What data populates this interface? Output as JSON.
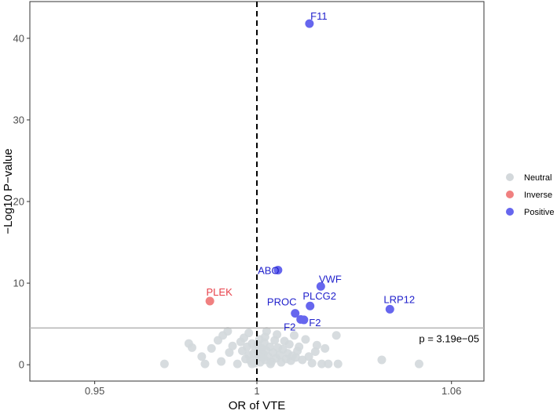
{
  "chart_data": {
    "type": "scatter",
    "title": "",
    "xlabel": "OR of VTE",
    "ylabel": "−Log10 P−value",
    "xlim": [
      0.93,
      1.07
    ],
    "ylim": [
      -2,
      44.5
    ],
    "x_ticks": [
      0.95,
      1,
      1.06
    ],
    "x_tick_labels": [
      "0.95",
      "1",
      "1.06"
    ],
    "y_ticks": [
      0,
      10,
      20,
      30,
      40
    ],
    "y_tick_labels": [
      "0",
      "10",
      "20",
      "30",
      "40"
    ],
    "vline_x": 1,
    "threshold_y": 4.5,
    "threshold_label": "p = 3.19e−05",
    "grid": false,
    "legend_placement": "right",
    "colors": {
      "Neutral": "#D3D8DB",
      "Inverse": "#F08080",
      "Positive": "#6666EE",
      "label_Inverse": "#E8404A",
      "label_Positive": "#2222CC"
    },
    "legend": [
      {
        "name": "Neutral"
      },
      {
        "name": "Inverse"
      },
      {
        "name": "Positive"
      }
    ],
    "labeled_points": [
      {
        "label": "F11",
        "x": 1.0162,
        "y": 41.8,
        "group": "Positive"
      },
      {
        "label": "ABO",
        "x": 1.0065,
        "y": 11.6,
        "group": "Positive"
      },
      {
        "label": "VWF",
        "x": 1.0197,
        "y": 9.6,
        "group": "Positive"
      },
      {
        "label": "PLEK",
        "x": 0.9855,
        "y": 7.8,
        "group": "Inverse"
      },
      {
        "label": "PLCG2",
        "x": 1.0164,
        "y": 7.2,
        "group": "Positive"
      },
      {
        "label": "LRP12",
        "x": 1.041,
        "y": 6.8,
        "group": "Positive"
      },
      {
        "label": "PROC",
        "x": 1.0118,
        "y": 6.3,
        "group": "Positive"
      },
      {
        "label": "F2",
        "x": 1.0145,
        "y": 5.5,
        "group": "Positive"
      },
      {
        "label": "F2",
        "x": 1.0135,
        "y": 5.55,
        "group": "Positive"
      }
    ],
    "neutral_points": [
      [
        0.9715,
        0.1
      ],
      [
        0.979,
        2.6
      ],
      [
        0.98,
        2.1
      ],
      [
        0.983,
        1.0
      ],
      [
        0.984,
        0.1
      ],
      [
        0.986,
        2.0
      ],
      [
        0.988,
        3.0
      ],
      [
        0.989,
        0.4
      ],
      [
        0.9895,
        3.6
      ],
      [
        0.991,
        4.1
      ],
      [
        0.9915,
        1.5
      ],
      [
        0.9925,
        2.3
      ],
      [
        0.994,
        0.1
      ],
      [
        0.995,
        2.8
      ],
      [
        0.9955,
        1.7
      ],
      [
        0.996,
        3.3
      ],
      [
        0.9965,
        0.7
      ],
      [
        0.997,
        2.2
      ],
      [
        0.9975,
        1.2
      ],
      [
        0.998,
        0.5
      ],
      [
        0.9985,
        2.6
      ],
      [
        0.999,
        1.4
      ],
      [
        0.9993,
        0.2
      ],
      [
        0.9996,
        1.9
      ],
      [
        1.0,
        0.8
      ],
      [
        1.0003,
        2.4
      ],
      [
        1.0006,
        1.1
      ],
      [
        1.0008,
        3.1
      ],
      [
        1.001,
        0.3
      ],
      [
        1.0012,
        1.6
      ],
      [
        1.0015,
        2.0
      ],
      [
        1.0018,
        0.9
      ],
      [
        1.002,
        1.3
      ],
      [
        1.0023,
        2.7
      ],
      [
        1.0025,
        0.6
      ],
      [
        1.0028,
        1.8
      ],
      [
        1.003,
        4.1
      ],
      [
        1.0035,
        1.0
      ],
      [
        1.004,
        2.2
      ],
      [
        1.0045,
        0.4
      ],
      [
        1.005,
        1.5
      ],
      [
        1.0055,
        3.0
      ],
      [
        1.006,
        0.8
      ],
      [
        1.0065,
        2.1
      ],
      [
        1.007,
        1.2
      ],
      [
        1.0075,
        0.3
      ],
      [
        1.008,
        1.9
      ],
      [
        1.0085,
        2.9
      ],
      [
        1.009,
        0.7
      ],
      [
        1.0095,
        1.4
      ],
      [
        1.01,
        2.5
      ],
      [
        1.0105,
        0.5
      ],
      [
        1.011,
        1.1
      ],
      [
        1.0115,
        3.6
      ],
      [
        1.012,
        0.9
      ],
      [
        1.0125,
        1.7
      ],
      [
        1.013,
        2.2
      ],
      [
        1.014,
        0.6
      ],
      [
        1.015,
        3.1
      ],
      [
        1.016,
        1.0
      ],
      [
        1.017,
        0.2
      ],
      [
        1.018,
        1.6
      ],
      [
        1.0185,
        2.4
      ],
      [
        1.02,
        0.1
      ],
      [
        1.021,
        2.0
      ],
      [
        1.022,
        0.1
      ],
      [
        1.0245,
        3.6
      ],
      [
        1.025,
        0.1
      ],
      [
        1.0385,
        0.6
      ],
      [
        1.05,
        0.1
      ],
      [
        0.9975,
        3.9
      ],
      [
        1.0025,
        3.4
      ],
      [
        1.0062,
        3.7
      ],
      [
        0.9985,
        0.1
      ],
      [
        1.0042,
        0.1
      ]
    ]
  }
}
